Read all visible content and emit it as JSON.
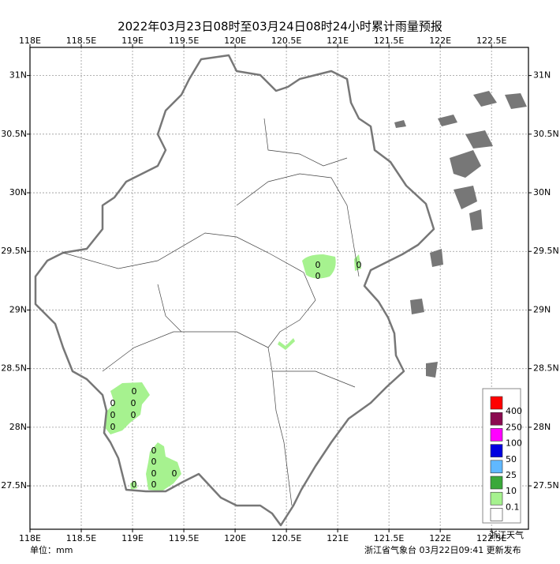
{
  "map": {
    "title": "2022年03月23日08时至03月24日08时24小时累计雨量预报",
    "lon_ticks": [
      {
        "value": 118,
        "label": "118E"
      },
      {
        "value": 118.5,
        "label": "118.5E"
      },
      {
        "value": 119,
        "label": "119E"
      },
      {
        "value": 119.5,
        "label": "119.5E"
      },
      {
        "value": 120,
        "label": "120E"
      },
      {
        "value": 120.5,
        "label": "120.5E"
      },
      {
        "value": 121,
        "label": "121E"
      },
      {
        "value": 121.5,
        "label": "121.5E"
      },
      {
        "value": 122,
        "label": "122E"
      },
      {
        "value": 122.5,
        "label": "122.5E"
      }
    ],
    "lat_ticks": [
      {
        "value": 31,
        "label": "31N"
      },
      {
        "value": 30.5,
        "label": "30.5N"
      },
      {
        "value": 30,
        "label": "30N"
      },
      {
        "value": 29.5,
        "label": "29.5N"
      },
      {
        "value": 29,
        "label": "29N"
      },
      {
        "value": 28.5,
        "label": "28.5N"
      },
      {
        "value": 28,
        "label": "28N"
      },
      {
        "value": 27.5,
        "label": "27.5N"
      }
    ],
    "lonlim": [
      118,
      122.86
    ],
    "latlim": [
      27.13,
      31.24
    ],
    "grid": true,
    "rain_labels": [
      "0",
      "0",
      "0",
      "0",
      "0",
      "0",
      "0",
      "0",
      "0",
      "0",
      "0",
      "0",
      "0",
      "0",
      "0"
    ],
    "legend": {
      "colors": [
        "#ff0000",
        "#8b0a50",
        "#ff00ff",
        "#0000e0",
        "#60b8ff",
        "#3aa83a",
        "#a6f28f",
        "#ffffff"
      ],
      "labels": [
        "400",
        "250",
        "100",
        "50",
        "25",
        "10",
        "0.1"
      ]
    },
    "unit": "单位：mm",
    "publisher": "浙江省气象台 03月22日09:41 更新发布",
    "watermark": "浙江天气"
  }
}
